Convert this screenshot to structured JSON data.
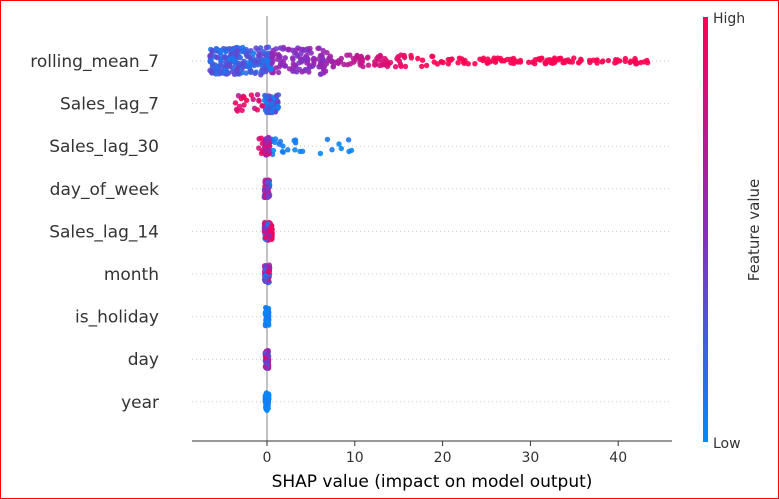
{
  "chart_data": {
    "type": "scatter",
    "subtype": "shap-beeswarm",
    "xlabel": "SHAP value (impact on model output)",
    "x_ticks": [
      0,
      10,
      20,
      30,
      40
    ],
    "xlim": [
      -8.5,
      45.5
    ],
    "grid": "horizontal dotted row guides",
    "colorbar": {
      "label": "Feature value",
      "high_label": "High",
      "low_label": "Low",
      "low_color": "#008bfb",
      "high_color": "#ff0052"
    },
    "features": [
      {
        "name": "rolling_mean_7",
        "min": -6.5,
        "max": 43.8,
        "low_min": -6.5,
        "low_max": 0.5
      },
      {
        "name": "Sales_lag_7",
        "min": -3.9,
        "max": 1.3,
        "low_min": -0.3,
        "low_max": 1.3
      },
      {
        "name": "Sales_lag_30",
        "min": -1.0,
        "max": 9.8,
        "low_min": 0.2,
        "low_max": 9.8
      },
      {
        "name": "day_of_week",
        "min": -0.3,
        "max": 0.3,
        "low_min": -0.3,
        "low_max": 0.3
      },
      {
        "name": "Sales_lag_14",
        "min": -0.3,
        "max": 0.6,
        "low_min": -0.3,
        "low_max": 0.3
      },
      {
        "name": "month",
        "min": -0.3,
        "max": 0.3,
        "low_min": -0.3,
        "low_max": 0.3
      },
      {
        "name": "is_holiday",
        "min": -0.2,
        "max": 0.2,
        "low_min": -0.2,
        "low_max": 0.2
      },
      {
        "name": "day",
        "min": -0.2,
        "max": 0.2,
        "low_min": -0.2,
        "low_max": 0.2
      },
      {
        "name": "year",
        "min": -0.2,
        "max": 0.2,
        "low_min": -0.2,
        "low_max": 0.2
      }
    ]
  }
}
